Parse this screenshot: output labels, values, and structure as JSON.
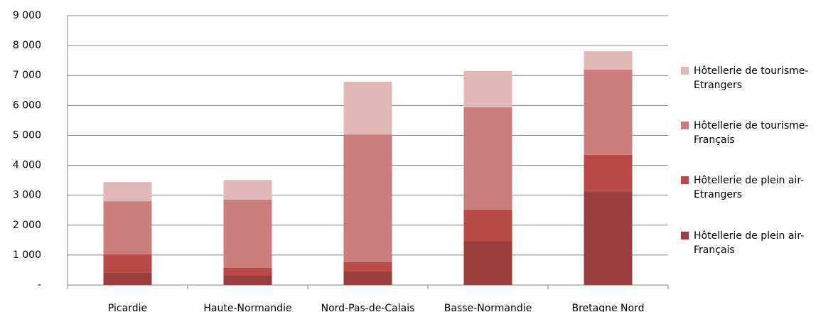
{
  "chart_data": {
    "type": "stacked_bar",
    "categories": [
      "Picardie",
      "Haute-Normandie",
      "Nord-Pas-de-Calais",
      "Basse-Normandie",
      "Bretagne Nord"
    ],
    "series": [
      {
        "name": "Hôtellerie de plein air-Français",
        "color": "#993d3d",
        "values": [
          420,
          330,
          470,
          1470,
          3110
        ]
      },
      {
        "name": "Hôtellerie de plein air-Etrangers",
        "color": "#b94a48",
        "values": [
          600,
          240,
          290,
          1050,
          1240
        ]
      },
      {
        "name": "Hôtellerie de tourisme-Français",
        "color": "#cb7c7b",
        "values": [
          1780,
          2280,
          4270,
          3420,
          2850
        ]
      },
      {
        "name": "Hôtellerie de tourisme-Etrangers",
        "color": "#e0b8b8",
        "values": [
          640,
          660,
          1760,
          1210,
          610
        ]
      }
    ],
    "ylim": [
      0,
      9000
    ],
    "yticks": [
      {
        "value": 0,
        "label": "-"
      },
      {
        "value": 1000,
        "label": "1 000"
      },
      {
        "value": 2000,
        "label": "2 000"
      },
      {
        "value": 3000,
        "label": "3 000"
      },
      {
        "value": 4000,
        "label": "4 000"
      },
      {
        "value": 5000,
        "label": "5 000"
      },
      {
        "value": 6000,
        "label": "6 000"
      },
      {
        "value": 7000,
        "label": "7 000"
      },
      {
        "value": 8000,
        "label": "8 000"
      },
      {
        "value": 9000,
        "label": "9 000"
      }
    ],
    "grid": true,
    "legend": "right"
  }
}
